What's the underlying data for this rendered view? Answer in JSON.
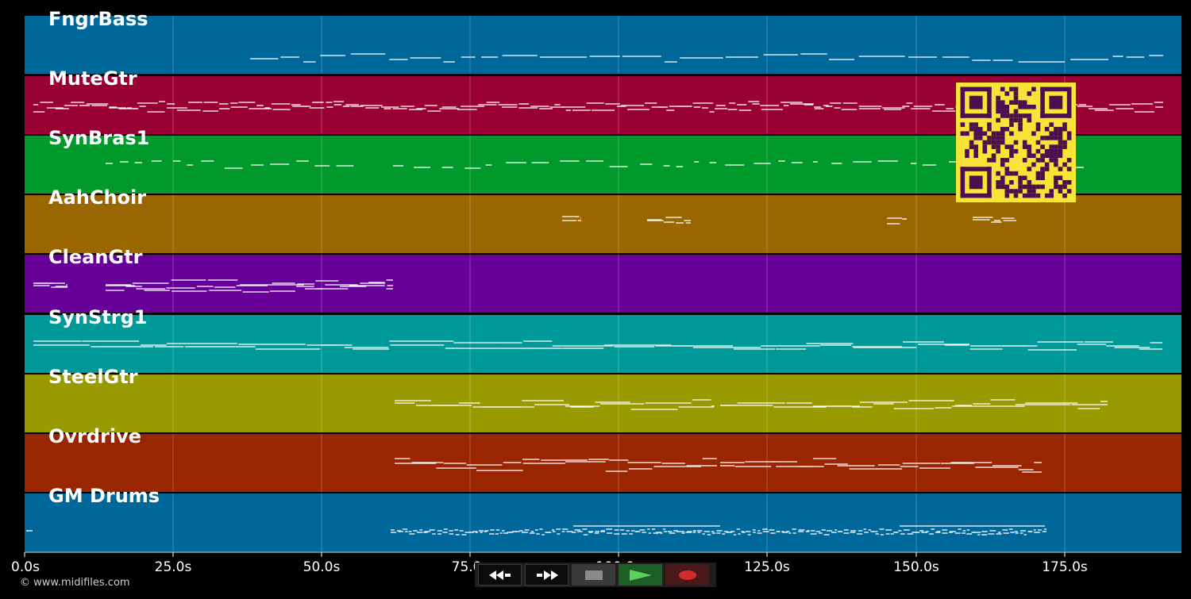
{
  "tracks": [
    {
      "name": "FngrBass",
      "color": "#00679b"
    },
    {
      "name": "MuteGtr",
      "color": "#990033"
    },
    {
      "name": "SynBras1",
      "color": "#00992b"
    },
    {
      "name": "AahChoir",
      "color": "#996600"
    },
    {
      "name": "CleanGtr",
      "color": "#660099"
    },
    {
      "name": "SynStrg1",
      "color": "#009999"
    },
    {
      "name": "SteelGtr",
      "color": "#999900"
    },
    {
      "name": "Ovrdrive",
      "color": "#992600"
    },
    {
      "name": "GM Drums",
      "color": "#00679b"
    }
  ],
  "timeline": {
    "unit": "s",
    "ticks": [
      "0.0s",
      "25.0s",
      "50.0s",
      "75.0s",
      "100.0s",
      "125.0s",
      "150.0s",
      "175.0s"
    ]
  },
  "transport": {
    "buttons": [
      {
        "name": "rewind-button",
        "icon": "rewind-icon"
      },
      {
        "name": "fast-forward-button",
        "icon": "fast-forward-icon"
      },
      {
        "name": "stop-button",
        "icon": "stop-icon"
      },
      {
        "name": "play-button",
        "icon": "play-icon"
      },
      {
        "name": "record-button",
        "icon": "record-icon"
      }
    ]
  },
  "qr_code": {
    "icon": "qr-code-icon",
    "fg": "#4b0f4f",
    "bg": "#f7e436"
  },
  "copyright": "© www.midifiles.com",
  "colors": {
    "background": "#000000",
    "note": "#ffffff",
    "grid": "#ffffff"
  }
}
